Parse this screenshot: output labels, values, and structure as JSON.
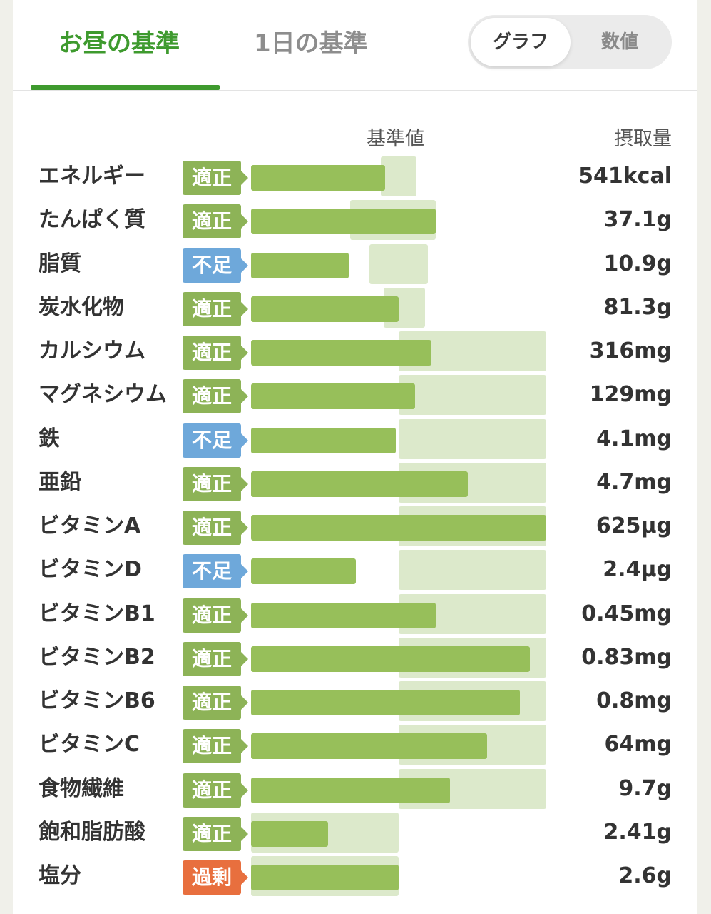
{
  "tabs": [
    {
      "label": "お昼の基準",
      "active": true
    },
    {
      "label": "1日の基準",
      "active": false
    }
  ],
  "view_toggle": {
    "options": [
      "グラフ",
      "数値"
    ],
    "selected": "グラフ"
  },
  "headers": {
    "reference": "基準値",
    "intake": "摂取量"
  },
  "colors": {
    "accent": "#3e9a2e",
    "bar": "#97bf5a",
    "range": "#dce9cb",
    "status_adequate": "#8db357",
    "status_deficient": "#6ea8da",
    "status_excess": "#e86f3e"
  },
  "nutrients": [
    {
      "name": "エネルギー",
      "status": "適正",
      "status_key": "adequate",
      "value": "541kcal",
      "ratio": 0.91,
      "range": [
        0.88,
        1.12
      ]
    },
    {
      "name": "たんぱく質",
      "status": "適正",
      "status_key": "adequate",
      "value": "37.1g",
      "ratio": 1.25,
      "range": [
        0.67,
        1.25
      ]
    },
    {
      "name": "脂質",
      "status": "不足",
      "status_key": "deficient",
      "value": "10.9g",
      "ratio": 0.66,
      "range": [
        0.8,
        1.2
      ]
    },
    {
      "name": "炭水化物",
      "status": "適正",
      "status_key": "adequate",
      "value": "81.3g",
      "ratio": 1.0,
      "range": [
        0.9,
        1.18
      ]
    },
    {
      "name": "カルシウム",
      "status": "適正",
      "status_key": "adequate",
      "value": "316mg",
      "ratio": 1.22,
      "range": [
        1.0,
        2.0
      ]
    },
    {
      "name": "マグネシウム",
      "status": "適正",
      "status_key": "adequate",
      "value": "129mg",
      "ratio": 1.11,
      "range": [
        1.0,
        2.0
      ]
    },
    {
      "name": "鉄",
      "status": "不足",
      "status_key": "deficient",
      "value": "4.1mg",
      "ratio": 0.98,
      "range": [
        1.0,
        2.0
      ]
    },
    {
      "name": "亜鉛",
      "status": "適正",
      "status_key": "adequate",
      "value": "4.7mg",
      "ratio": 1.47,
      "range": [
        1.0,
        2.0
      ]
    },
    {
      "name": "ビタミンA",
      "status": "適正",
      "status_key": "adequate",
      "value": "625μg",
      "ratio": 2.0,
      "range": [
        1.0,
        2.0
      ]
    },
    {
      "name": "ビタミンD",
      "status": "不足",
      "status_key": "deficient",
      "value": "2.4μg",
      "ratio": 0.71,
      "range": [
        1.0,
        2.0
      ]
    },
    {
      "name": "ビタミンB1",
      "status": "適正",
      "status_key": "adequate",
      "value": "0.45mg",
      "ratio": 1.25,
      "range": [
        1.0,
        2.0
      ]
    },
    {
      "name": "ビタミンB2",
      "status": "適正",
      "status_key": "adequate",
      "value": "0.83mg",
      "ratio": 1.89,
      "range": [
        1.0,
        2.0
      ]
    },
    {
      "name": "ビタミンB6",
      "status": "適正",
      "status_key": "adequate",
      "value": "0.8mg",
      "ratio": 1.82,
      "range": [
        1.0,
        2.0
      ]
    },
    {
      "name": "ビタミンC",
      "status": "適正",
      "status_key": "adequate",
      "value": "64mg",
      "ratio": 1.6,
      "range": [
        1.0,
        2.0
      ]
    },
    {
      "name": "食物繊維",
      "status": "適正",
      "status_key": "adequate",
      "value": "9.7g",
      "ratio": 1.35,
      "range": [
        1.0,
        2.0
      ]
    },
    {
      "name": "飽和脂肪酸",
      "status": "適正",
      "status_key": "adequate",
      "value": "2.41g",
      "ratio": 0.52,
      "range": [
        0.0,
        1.0
      ]
    },
    {
      "name": "塩分",
      "status": "過剰",
      "status_key": "excess",
      "value": "2.6g",
      "ratio": 1.0,
      "range": [
        0.0,
        1.0
      ]
    }
  ]
}
